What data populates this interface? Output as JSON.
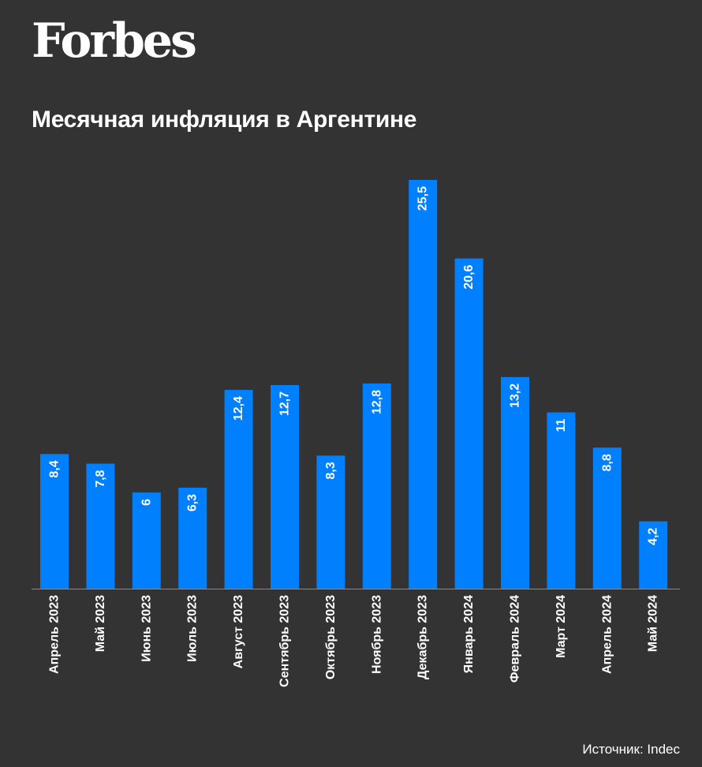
{
  "brand": {
    "logo_text": "Forbes"
  },
  "chart_data": {
    "type": "bar",
    "title": "Месячная инфляция в Аргентине",
    "xlabel": "",
    "ylabel": "",
    "ylim": [
      0,
      25.5
    ],
    "grid": false,
    "categories": [
      "Апрель 2023",
      "Май 2023",
      "Июнь 2023",
      "Июль 2023",
      "Август 2023",
      "Сентябрь 2023",
      "Октябрь 2023",
      "Ноябрь 2023",
      "Декабрь 2023",
      "Январь 2024",
      "Февраль 2024",
      "Март 2024",
      "Апрель 2024",
      "Май 2024"
    ],
    "values": [
      8.4,
      7.8,
      6,
      6.3,
      12.4,
      12.7,
      8.3,
      12.8,
      25.5,
      20.6,
      13.2,
      11,
      8.8,
      4.2
    ],
    "data_labels": [
      "8,4",
      "7,8",
      "6",
      "6,3",
      "12,4",
      "12,7",
      "8,3",
      "12,8",
      "25,5",
      "20,6",
      "13,2",
      "11",
      "8,8",
      "4,2"
    ],
    "bar_color": "#0080ff",
    "source": "Источник: Indec"
  }
}
